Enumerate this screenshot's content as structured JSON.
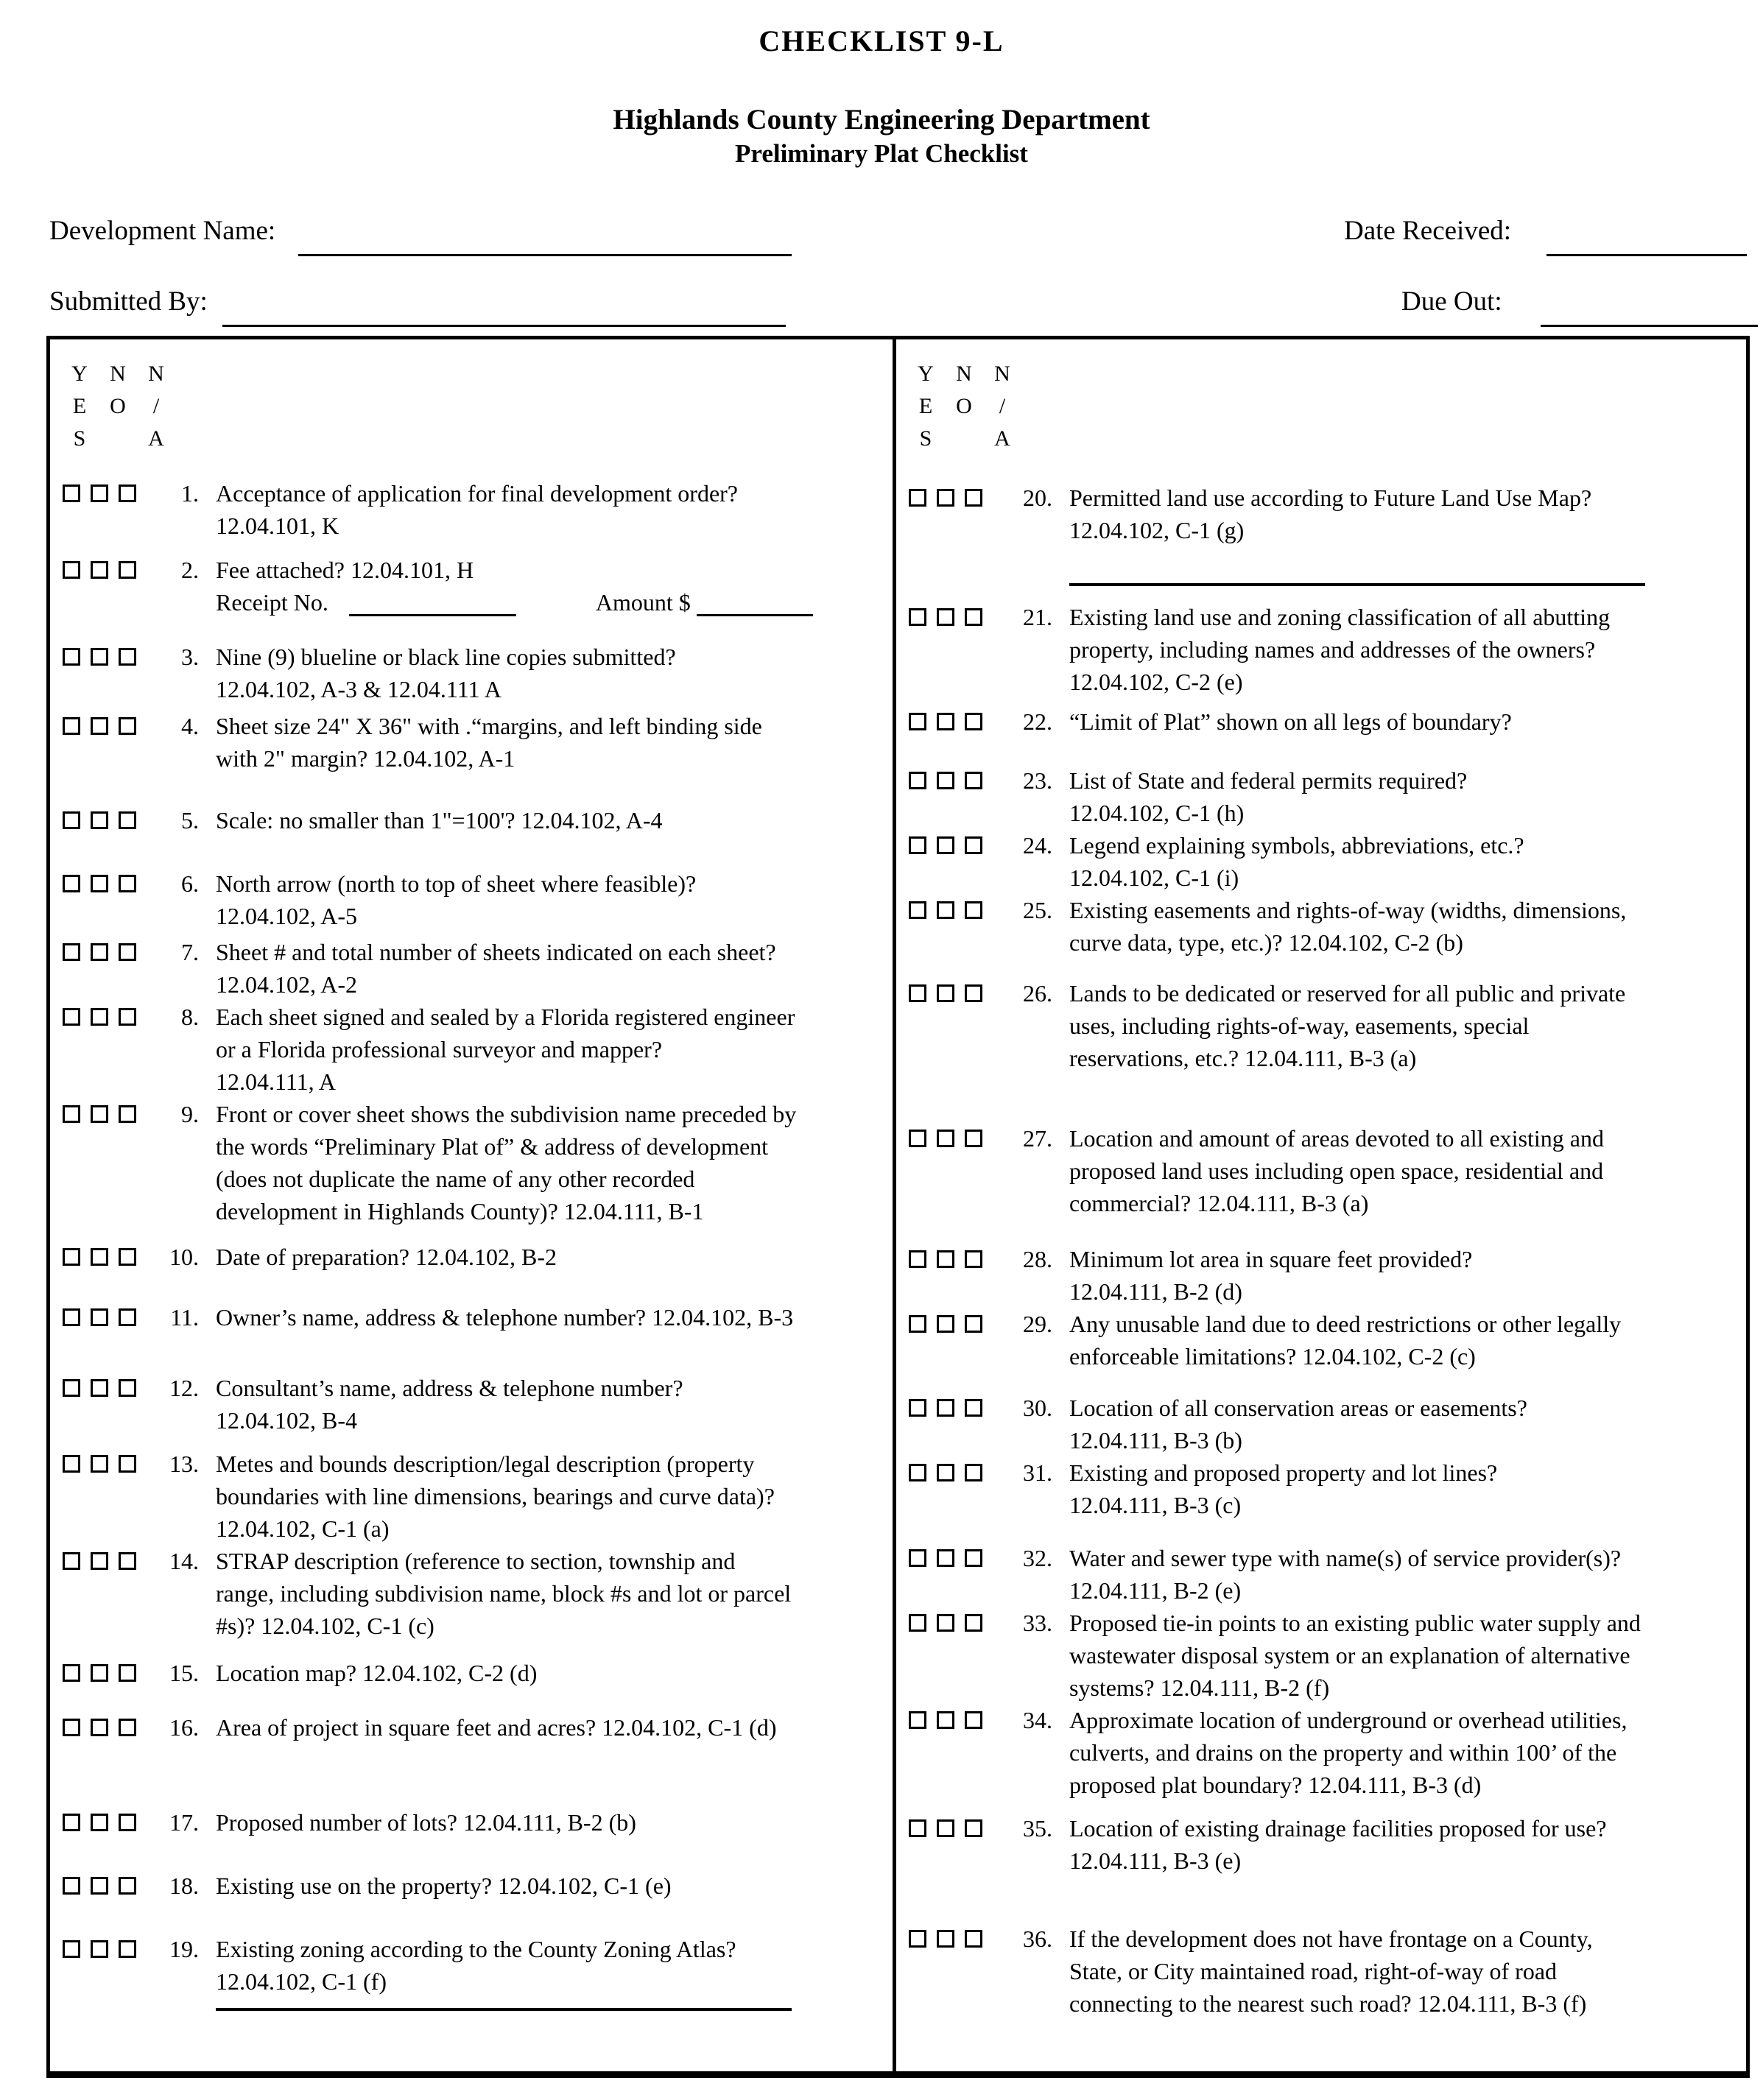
{
  "colors": {
    "ink": "#000000",
    "paper": "#ffffff"
  },
  "header": {
    "checklist_code": "CHECKLIST 9-L",
    "department": "Highlands County Engineering Department",
    "subtitle": "Preliminary Plat Checklist"
  },
  "form": {
    "development_name_label": "Development Name:",
    "date_received_label": "Date Received:",
    "submitted_by_label": "Submitted By:",
    "due_out_label": "Due Out:"
  },
  "yes_no_na": {
    "cols": [
      [
        "Y",
        "E",
        "S"
      ],
      [
        "",
        "N",
        "O"
      ],
      [
        "N",
        "/",
        "A"
      ]
    ],
    "meanings": [
      "YES",
      "NO",
      "N/A"
    ]
  },
  "receipt": {
    "receipt_no_label": "Receipt No.",
    "amount_label": "Amount $"
  },
  "left_items": [
    {
      "num": "1.",
      "mt": 30,
      "text": "Acceptance of application for final development order?\n12.04.101, K"
    },
    {
      "num": "2.",
      "mt": 16,
      "special": "receipt",
      "text": "Fee attached? 12.04.101, H"
    },
    {
      "num": "3.",
      "mt": 30,
      "text": "Nine (9) blueline or black line copies submitted?\n12.04.102, A-3 & 12.04.111 A"
    },
    {
      "num": "4.",
      "mt": 6,
      "text": "Sheet size 24\" X 36\" with .“margins, and left binding side\nwith 2\" margin? 12.04.102, A-1"
    },
    {
      "num": "5.",
      "mt": 40,
      "text": "Scale: no smaller than 1\"=100'? 12.04.102, A-4"
    },
    {
      "num": "6.",
      "mt": 42,
      "text": "North arrow (north to top of sheet where feasible)?\n12.04.102, A-5"
    },
    {
      "num": "7.",
      "mt": 5,
      "text": "Sheet # and total number of sheets indicated on each sheet?\n12.04.102, A-2"
    },
    {
      "num": "8.",
      "mt": 0,
      "text": "Each sheet signed and sealed by a Florida registered engineer\nor a Florida professional surveyor and mapper?\n12.04.111, A"
    },
    {
      "num": "9.",
      "mt": 0,
      "text": "Front or cover sheet shows the subdivision name preceded by\nthe words “Preliminary Plat of” & address of development\n(does not duplicate the name of any other recorded\ndevelopment in Highlands County)? 12.04.111, B-1"
    },
    {
      "num": "10.",
      "mt": 18,
      "text": "Date of preparation? 12.04.102, B-2"
    },
    {
      "num": "11.",
      "mt": 38,
      "text": "Owner’s name, address & telephone number? 12.04.102, B-3"
    },
    {
      "num": "12.",
      "mt": 52,
      "text": "Consultant’s name, address & telephone number?\n12.04.102, B-4"
    },
    {
      "num": "13.",
      "mt": 15,
      "text": "Metes and bounds description/legal description (property\nboundaries with line dimensions, bearings and curve data)?\n12.04.102, C-1 (a)"
    },
    {
      "num": "14.",
      "mt": 0,
      "text": "STRAP description (reference to section, township and\nrange, including subdivision name, block #s and lot or parcel\n#s)? 12.04.102, C-1 (c)"
    },
    {
      "num": "15.",
      "mt": 20,
      "text": "Location map? 12.04.102, C-2 (d)"
    },
    {
      "num": "16.",
      "mt": 30,
      "text": "Area of project in square feet and acres? 12.04.102, C-1 (d)"
    },
    {
      "num": "17.",
      "mt": 85,
      "text": "Proposed number of lots? 12.04.111, B-2 (b)"
    },
    {
      "num": "18.",
      "mt": 42,
      "text": "Existing use on the property? 12.04.102, C-1 (e)"
    },
    {
      "num": "19.",
      "mt": 42,
      "underline_after": true,
      "u_mt": 14,
      "text": "Existing zoning according to the County Zoning Atlas?\n12.04.102, C-1 (f)"
    }
  ],
  "right_items": [
    {
      "num": "20.",
      "mt": 36,
      "underline_after": true,
      "u_mt": 50,
      "text": "Permitted land use according to Future Land Use Map?\n12.04.102, C-1 (g)"
    },
    {
      "num": "21.",
      "mt": 20,
      "text": "Existing land use and zoning classification of all abutting\nproperty, including names and addresses of the owners?\n12.04.102, C-2 (e)"
    },
    {
      "num": "22.",
      "mt": 10,
      "text": "“Limit of Plat” shown on all legs of boundary?"
    },
    {
      "num": "23.",
      "mt": 36,
      "text": "List of State and federal permits required?\n12.04.102, C-1 (h)"
    },
    {
      "num": "24.",
      "mt": 0,
      "text": "Legend explaining symbols, abbreviations, etc.?\n12.04.102, C-1 (i)"
    },
    {
      "num": "25.",
      "mt": 0,
      "text": "Existing easements and rights-of-way (widths, dimensions,\ncurve data, type, etc.)? 12.04.102, C-2 (b)"
    },
    {
      "num": "26.",
      "mt": 25,
      "text": "Lands to be dedicated or reserved for all public and private\nuses, including rights-of-way, easements, special\nreservations, etc.? 12.04.111, B-3 (a)"
    },
    {
      "num": "27.",
      "mt": 65,
      "text": "Location and amount of areas devoted to all existing and\nproposed land uses including open space, residential and\ncommercial? 12.04.111, B-3 (a)"
    },
    {
      "num": "28.",
      "mt": 32,
      "text": "Minimum lot area in square feet provided?\n12.04.111, B-2 (d)"
    },
    {
      "num": "29.",
      "mt": 0,
      "text": "Any unusable land due to deed restrictions or other legally\nenforceable limitations? 12.04.102, C-2 (c)"
    },
    {
      "num": "30.",
      "mt": 26,
      "text": "Location of all conservation areas or easements?\n12.04.111, B-3 (b)"
    },
    {
      "num": "31.",
      "mt": 0,
      "text": "Existing and proposed property and lot lines?\n12.04.111, B-3 (c)"
    },
    {
      "num": "32.",
      "mt": 28,
      "text": "Water and sewer type with name(s) of service provider(s)?\n12.04.111, B-2 (e)"
    },
    {
      "num": "33.",
      "mt": 0,
      "text": "Proposed tie-in points to an existing public water supply and\nwastewater disposal system or an explanation of alternative\nsystems? 12.04.111, B-2 (f)"
    },
    {
      "num": "34.",
      "mt": 0,
      "text": "Approximate location of underground or overhead utilities,\nculverts, and drains on the property and within 100’ of the\nproposed plat boundary? 12.04.111, B-3 (d)"
    },
    {
      "num": "35.",
      "mt": 15,
      "text": "Location of existing drainage facilities proposed for use?\n12.04.111, B-3 (e)"
    },
    {
      "num": "36.",
      "mt": 62,
      "text": "If the development does not have frontage on a County,\nState, or City maintained road, right-of-way of road\nconnecting to the nearest such road? 12.04.111, B-3 (f)"
    }
  ]
}
